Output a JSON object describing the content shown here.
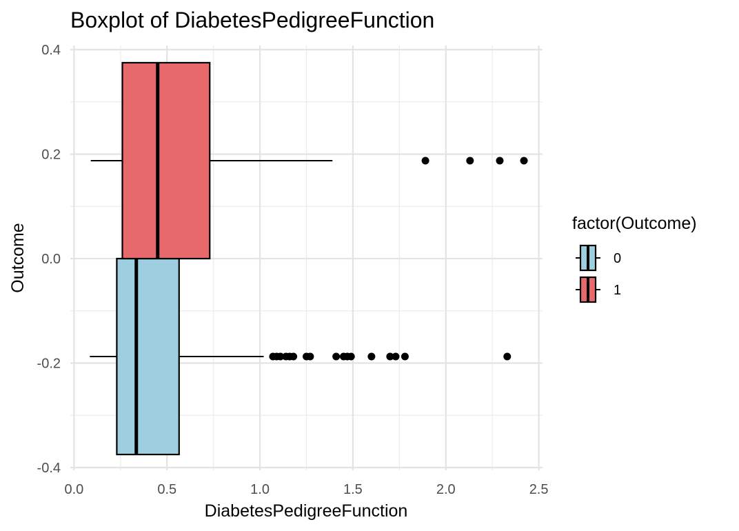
{
  "chart_data": {
    "type": "boxplot",
    "title": "Boxplot of DiabetesPedigreeFunction",
    "xlabel": "DiabetesPedigreeFunction",
    "ylabel": "Outcome",
    "orientation": "horizontal",
    "xlim": [
      -0.02,
      2.52
    ],
    "ylim": [
      -0.4,
      0.4
    ],
    "x_ticks": [
      0.0,
      0.5,
      1.0,
      1.5,
      2.0,
      2.5
    ],
    "x_tick_labels": [
      "0.0",
      "0.5",
      "1.0",
      "1.5",
      "2.0",
      "2.5"
    ],
    "y_ticks": [
      0.4,
      0.2,
      0.0,
      -0.2,
      -0.4
    ],
    "y_tick_labels": [
      "0.4",
      "0.2",
      "0.0",
      "-0.2",
      "-0.4"
    ],
    "grid": true,
    "legend": {
      "title": "factor(Outcome)",
      "position": "right",
      "entries": [
        {
          "label": "0",
          "color": "#9ECFE0"
        },
        {
          "label": "1",
          "color": "#E8696C"
        }
      ]
    },
    "series": [
      {
        "name": "0",
        "color": "#9ECFE0",
        "y_center": -0.1875,
        "y_range": [
          -0.375,
          0.0
        ],
        "whisker_low": 0.085,
        "q1": 0.23,
        "median": 0.335,
        "q3": 0.565,
        "whisker_high": 1.02,
        "outliers": [
          1.07,
          1.09,
          1.11,
          1.14,
          1.16,
          1.18,
          1.25,
          1.27,
          1.41,
          1.45,
          1.47,
          1.49,
          1.6,
          1.7,
          1.73,
          1.78,
          2.33
        ]
      },
      {
        "name": "1",
        "color": "#E8696C",
        "y_center": 0.1875,
        "y_range": [
          0.0,
          0.375
        ],
        "whisker_low": 0.09,
        "q1": 0.26,
        "median": 0.45,
        "q3": 0.73,
        "whisker_high": 1.39,
        "outliers": [
          1.89,
          2.13,
          2.29,
          2.42
        ]
      }
    ]
  }
}
